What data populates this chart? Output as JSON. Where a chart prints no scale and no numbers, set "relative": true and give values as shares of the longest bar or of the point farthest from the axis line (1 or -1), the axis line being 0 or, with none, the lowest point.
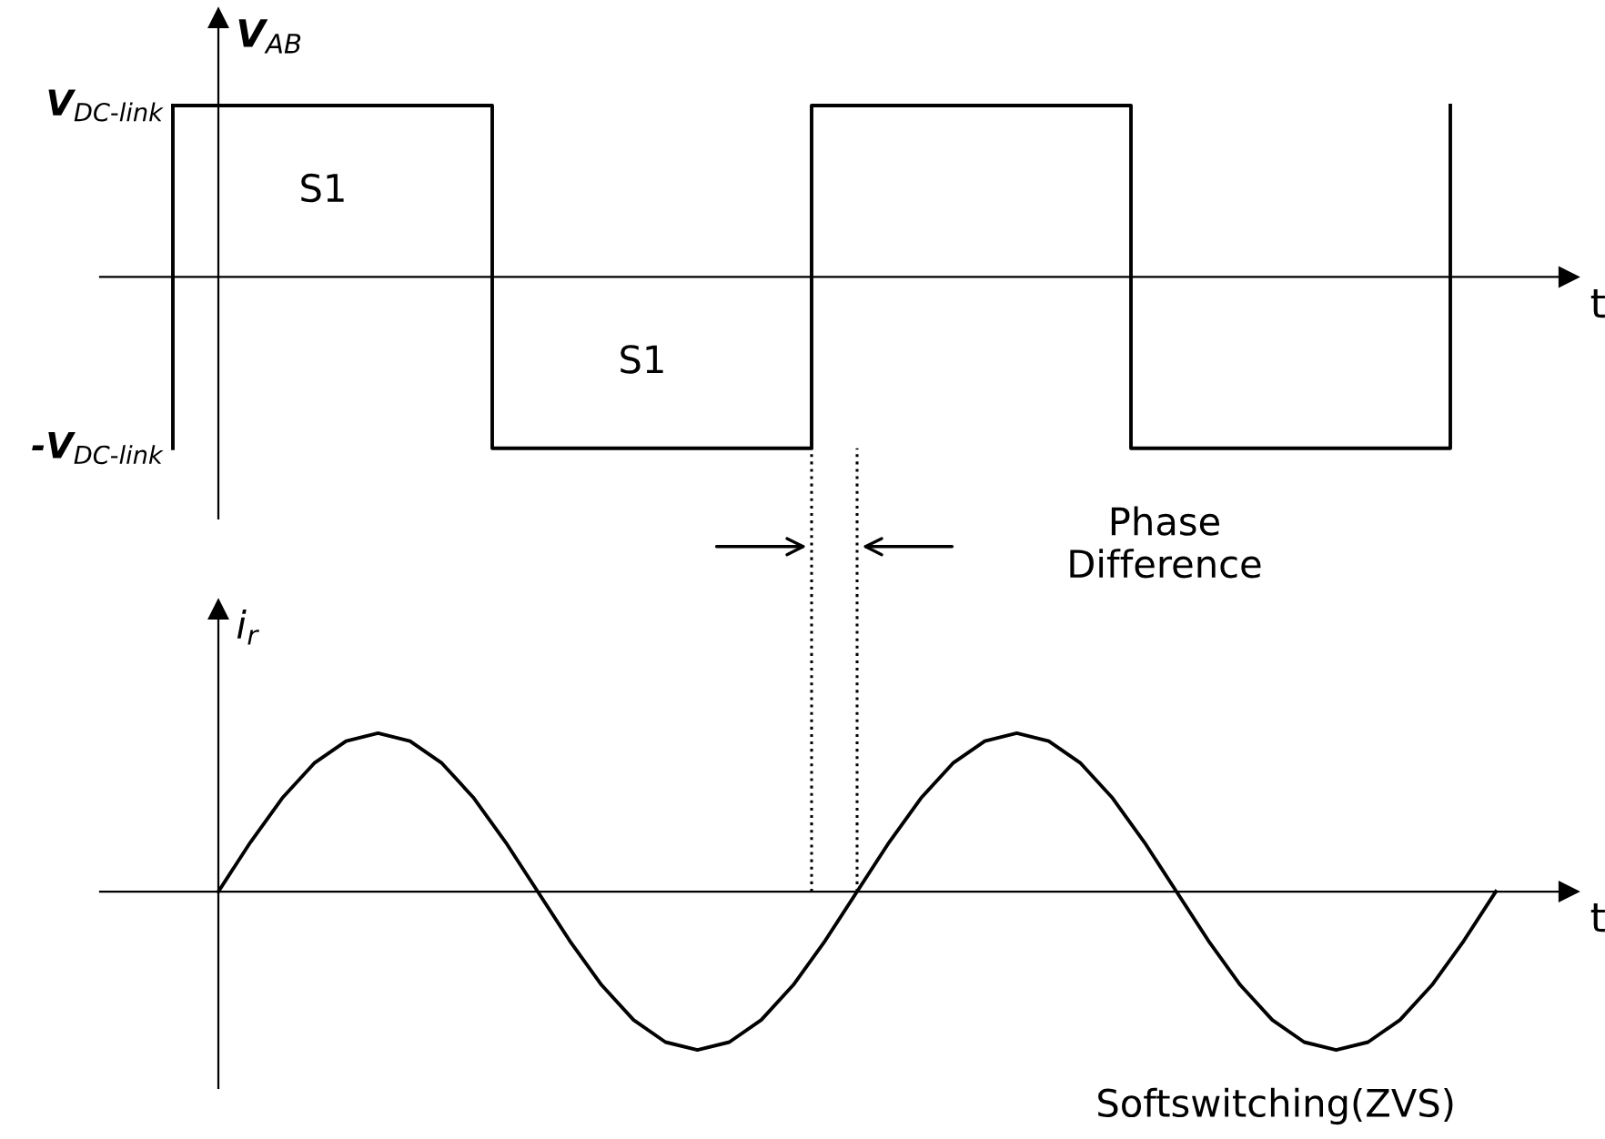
{
  "chart_data": [
    {
      "type": "step",
      "ylabel": "V$_{AB}$",
      "xlabel": "t",
      "categories": [
        null,
        null,
        null,
        null,
        null
      ],
      "series": [
        {
          "color": "#000000",
          "values": [
            1,
            -1,
            1,
            -1,
            1
          ]
        }
      ],
      "relative": true,
      "grid": false,
      "legend": false,
      "marker": "none",
      "line_style": "solid",
      "annotations": [
        "S1",
        "S1",
        "V$_{DC‐link}$",
        "-V$_{DC‐link}$"
      ]
    },
    {
      "type": "line",
      "ylabel": "i$_{r}$",
      "xlabel": "t",
      "relative": true,
      "categories": [
        null,
        null,
        null,
        null,
        null,
        null,
        null,
        null,
        null,
        null,
        null,
        null,
        null,
        null,
        null,
        null,
        null,
        null,
        null,
        null,
        null,
        null,
        null,
        null,
        null,
        null,
        null,
        null,
        null,
        null,
        null,
        null,
        null,
        null,
        null,
        null,
        null,
        null,
        null,
        null,
        null
      ],
      "series": [
        {
          "color": "#000000",
          "values": [
            0,
            0.31,
            0.59,
            0.81,
            0.95,
            1,
            0.95,
            0.81,
            0.59,
            0.31,
            0,
            -0.31,
            -0.59,
            -0.81,
            -0.95,
            -1,
            -0.95,
            -0.81,
            -0.59,
            -0.31,
            0,
            0.31,
            0.59,
            0.81,
            0.95,
            1,
            0.95,
            0.81,
            0.59,
            0.31,
            0,
            -0.31,
            -0.59,
            -0.81,
            -0.95,
            -1,
            -0.95,
            -0.81,
            -0.59,
            -0.31,
            0
          ]
        }
      ],
      "grid": false,
      "legend": false,
      "marker": "none",
      "line_style": "solid",
      "annotations": [
        "Phase\nDifference",
        "Softswitching(ZVS)"
      ]
    }
  ]
}
